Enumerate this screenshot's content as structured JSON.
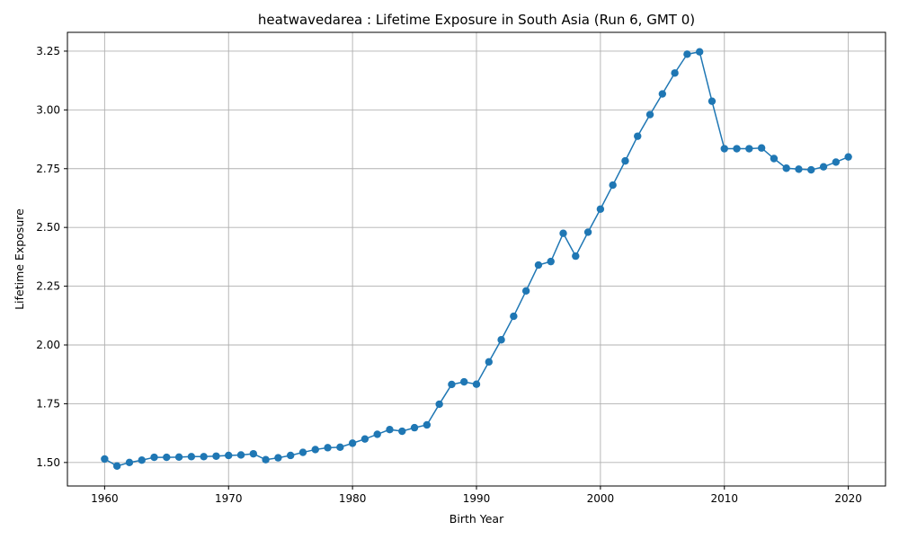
{
  "chart_data": {
    "type": "line",
    "title": "heatwavedarea : Lifetime Exposure in South Asia (Run 6, GMT 0)",
    "xlabel": "Birth Year",
    "ylabel": "Lifetime Exposure",
    "xlim": [
      1957,
      2023
    ],
    "ylim": [
      1.4,
      3.33
    ],
    "xticks": [
      1960,
      1970,
      1980,
      1990,
      2000,
      2010,
      2020
    ],
    "yticks": [
      1.5,
      1.75,
      2.0,
      2.25,
      2.5,
      2.75,
      3.0,
      3.25
    ],
    "xtick_labels": [
      "1960",
      "1970",
      "1980",
      "1990",
      "2000",
      "2010",
      "2020"
    ],
    "ytick_labels": [
      "1.50",
      "1.75",
      "2.00",
      "2.25",
      "2.50",
      "2.75",
      "3.00",
      "3.25"
    ],
    "grid": true,
    "color": "#1f77b4",
    "marker": "circle",
    "x": [
      1960,
      1961,
      1962,
      1963,
      1964,
      1965,
      1966,
      1967,
      1968,
      1969,
      1970,
      1971,
      1972,
      1973,
      1974,
      1975,
      1976,
      1977,
      1978,
      1979,
      1980,
      1981,
      1982,
      1983,
      1984,
      1985,
      1986,
      1987,
      1988,
      1989,
      1990,
      1991,
      1992,
      1993,
      1994,
      1995,
      1996,
      1997,
      1998,
      1999,
      2000,
      2001,
      2002,
      2003,
      2004,
      2005,
      2006,
      2007,
      2008,
      2009,
      2010,
      2011,
      2012,
      2013,
      2014,
      2015,
      2016,
      2017,
      2018,
      2019,
      2020
    ],
    "y": [
      1.515,
      1.485,
      1.5,
      1.51,
      1.522,
      1.522,
      1.523,
      1.525,
      1.525,
      1.527,
      1.53,
      1.532,
      1.537,
      1.512,
      1.52,
      1.53,
      1.543,
      1.555,
      1.563,
      1.565,
      1.582,
      1.6,
      1.62,
      1.64,
      1.633,
      1.648,
      1.66,
      1.748,
      1.832,
      1.843,
      1.833,
      1.928,
      2.022,
      2.122,
      2.23,
      2.34,
      2.355,
      2.475,
      2.378,
      2.48,
      2.578,
      2.68,
      2.783,
      2.888,
      2.98,
      3.068,
      3.157,
      3.237,
      3.247,
      3.037,
      2.835,
      2.835,
      2.835,
      2.838,
      2.793,
      2.752,
      2.748,
      2.745,
      2.758,
      2.778,
      2.8
    ]
  }
}
